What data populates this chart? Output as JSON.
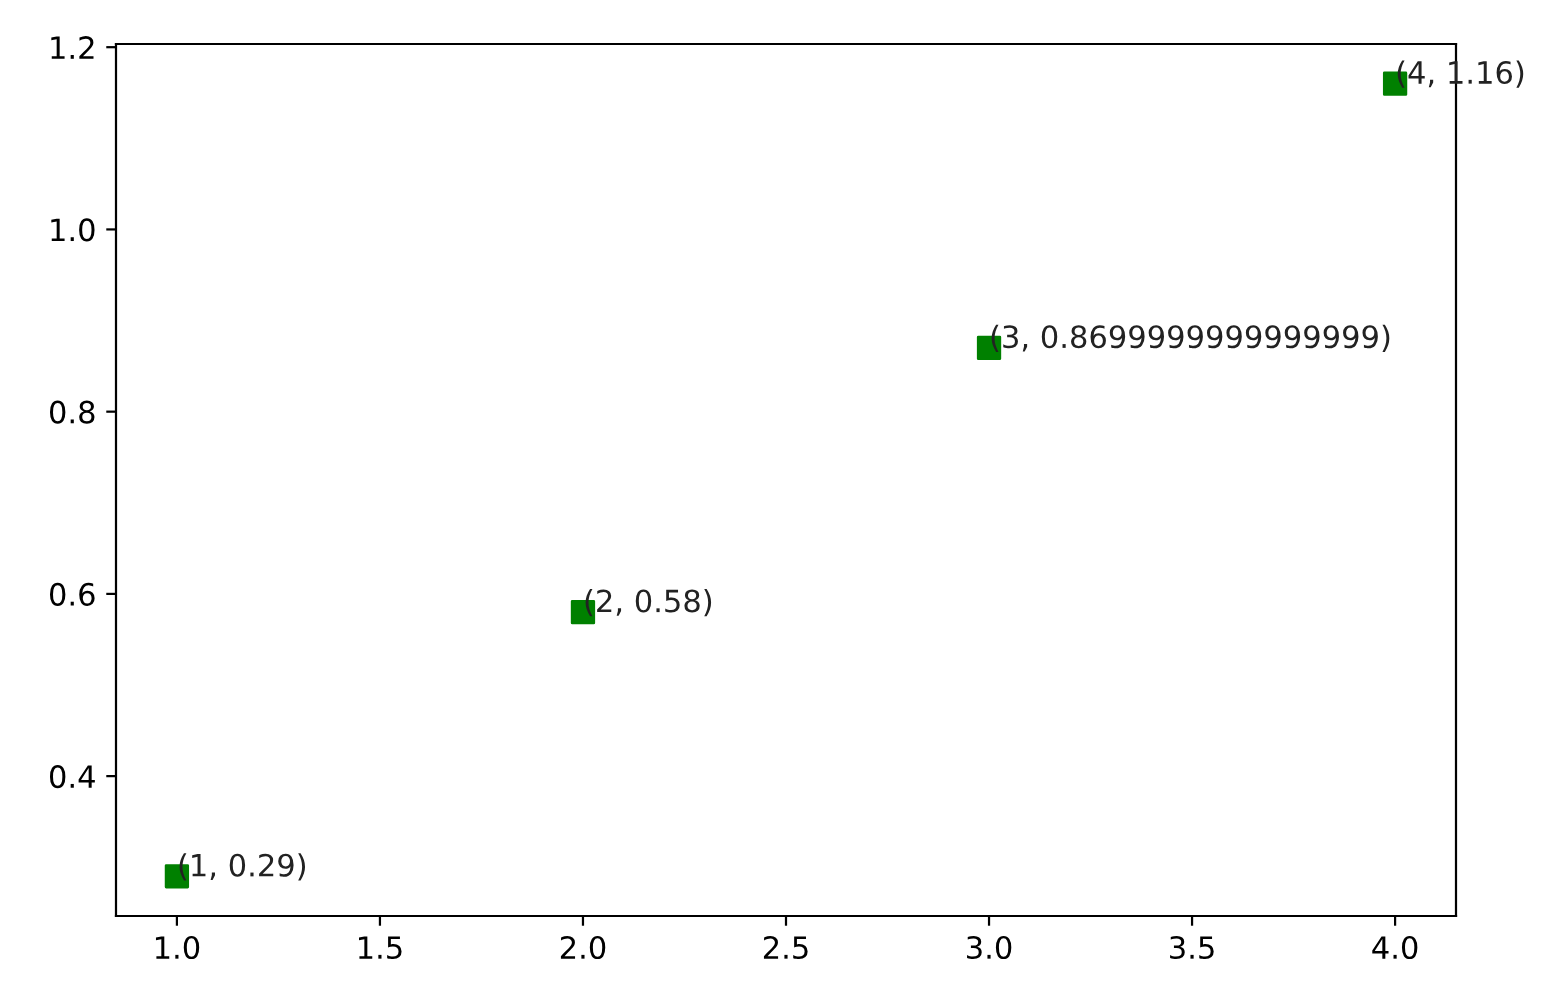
{
  "chart_data": {
    "type": "scatter",
    "x": [
      1,
      2,
      3,
      4
    ],
    "series": [
      {
        "color": "#008000",
        "values": [
          0.29,
          0.58,
          0.87,
          1.16
        ],
        "value_labels": [
          "(1, 0.29)",
          "(2, 0.58)",
          "(3, 0.8699999999999999)",
          "(4, 1.16)"
        ]
      }
    ],
    "marker": "square",
    "xlim": [
      0.85,
      4.15
    ],
    "ylim": [
      0.2465,
      1.2035
    ],
    "xticks": [
      {
        "value": 1,
        "label": "1.0"
      },
      1.5,
      {
        "value": 2,
        "label": "2.0"
      },
      2.5,
      {
        "value": 3,
        "label": "3.0"
      },
      3.5,
      {
        "value": 4,
        "label": "4.0"
      }
    ],
    "yticks": [
      0.4,
      0.6,
      0.8,
      {
        "value": 1,
        "label": "1.0"
      },
      1.2
    ],
    "grid": false
  }
}
